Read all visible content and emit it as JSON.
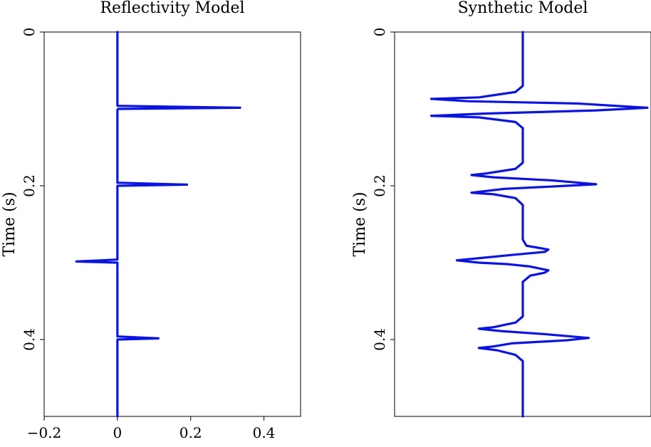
{
  "chart_data": [
    {
      "type": "line",
      "title": "Reflectivity Model",
      "xlabel": "",
      "ylabel": "Time (s)",
      "xlim": [
        -0.2,
        0.5
      ],
      "ylim": [
        0,
        0.5
      ],
      "y_inverted": true,
      "x_ticks": [
        "-0.2",
        "0",
        "0.2",
        "0.4"
      ],
      "x_tick_values": [
        -0.2,
        0,
        0.2,
        0.4
      ],
      "y_ticks": [
        "0",
        "0.2",
        "0.4"
      ],
      "y_tick_values": [
        0,
        0.2,
        0.4
      ],
      "grid": false,
      "series": [
        {
          "color": "#0a14e0",
          "points": [
            [
              0,
              0
            ],
            [
              0,
              0.096
            ],
            [
              0.335,
              0.0985
            ],
            [
              0.002,
              0.1
            ],
            [
              0,
              0.101
            ],
            [
              0,
              0.196
            ],
            [
              0.19,
              0.1985
            ],
            [
              0.002,
              0.2
            ],
            [
              0,
              0.2
            ],
            [
              0,
              0.296
            ],
            [
              -0.112,
              0.2985
            ],
            [
              -0.002,
              0.3
            ],
            [
              0,
              0.3
            ],
            [
              0,
              0.396
            ],
            [
              0.112,
              0.3985
            ],
            [
              0.002,
              0.4
            ],
            [
              0,
              0.4
            ],
            [
              0,
              0.5
            ]
          ]
        }
      ]
    },
    {
      "type": "line",
      "title": "Synthetic Model",
      "xlabel": "",
      "ylabel": "Time (s)",
      "ylim": [
        0,
        0.5
      ],
      "xlim": [
        -0.35,
        0.35
      ],
      "y_inverted": true,
      "x_ticks": [],
      "y_ticks": [
        "0",
        "0.2",
        "0.4"
      ],
      "y_tick_values": [
        0,
        0.2,
        0.4
      ],
      "grid": false,
      "series": [
        {
          "color": "#0a14e0",
          "points": [
            [
              0,
              0
            ],
            [
              0,
              0.07
            ],
            [
              -0.02,
              0.078
            ],
            [
              -0.12,
              0.085
            ],
            [
              -0.25,
              0.087
            ],
            [
              -0.15,
              0.09
            ],
            [
              0.15,
              0.093
            ],
            [
              0.34,
              0.0985
            ],
            [
              0.2,
              0.102
            ],
            [
              -0.1,
              0.106
            ],
            [
              -0.25,
              0.109
            ],
            [
              -0.12,
              0.111
            ],
            [
              -0.02,
              0.117
            ],
            [
              0,
              0.125
            ],
            [
              0,
              0.17
            ],
            [
              -0.02,
              0.178
            ],
            [
              -0.1,
              0.184
            ],
            [
              -0.14,
              0.186
            ],
            [
              -0.08,
              0.189
            ],
            [
              0.08,
              0.193
            ],
            [
              0.2,
              0.198
            ],
            [
              0.12,
              0.2
            ],
            [
              -0.05,
              0.204
            ],
            [
              -0.14,
              0.209
            ],
            [
              -0.08,
              0.211
            ],
            [
              -0.02,
              0.216
            ],
            [
              0,
              0.225
            ],
            [
              0,
              0.27
            ],
            [
              0.01,
              0.278
            ],
            [
              0.07,
              0.283
            ],
            [
              0.06,
              0.286
            ],
            [
              -0.03,
              0.29
            ],
            [
              -0.18,
              0.297
            ],
            [
              -0.12,
              0.3
            ],
            [
              -0.04,
              0.302
            ],
            [
              0.02,
              0.305
            ],
            [
              0.07,
              0.31
            ],
            [
              0.06,
              0.313
            ],
            [
              0.02,
              0.317
            ],
            [
              0,
              0.325
            ],
            [
              0,
              0.37
            ],
            [
              -0.02,
              0.378
            ],
            [
              -0.08,
              0.384
            ],
            [
              -0.12,
              0.386
            ],
            [
              -0.06,
              0.389
            ],
            [
              0.06,
              0.393
            ],
            [
              0.18,
              0.398
            ],
            [
              0.12,
              0.401
            ],
            [
              -0.03,
              0.405
            ],
            [
              -0.08,
              0.409
            ],
            [
              -0.12,
              0.411
            ],
            [
              -0.07,
              0.414
            ],
            [
              -0.02,
              0.42
            ],
            [
              0,
              0.428
            ],
            [
              0,
              0.5
            ]
          ]
        }
      ]
    }
  ]
}
